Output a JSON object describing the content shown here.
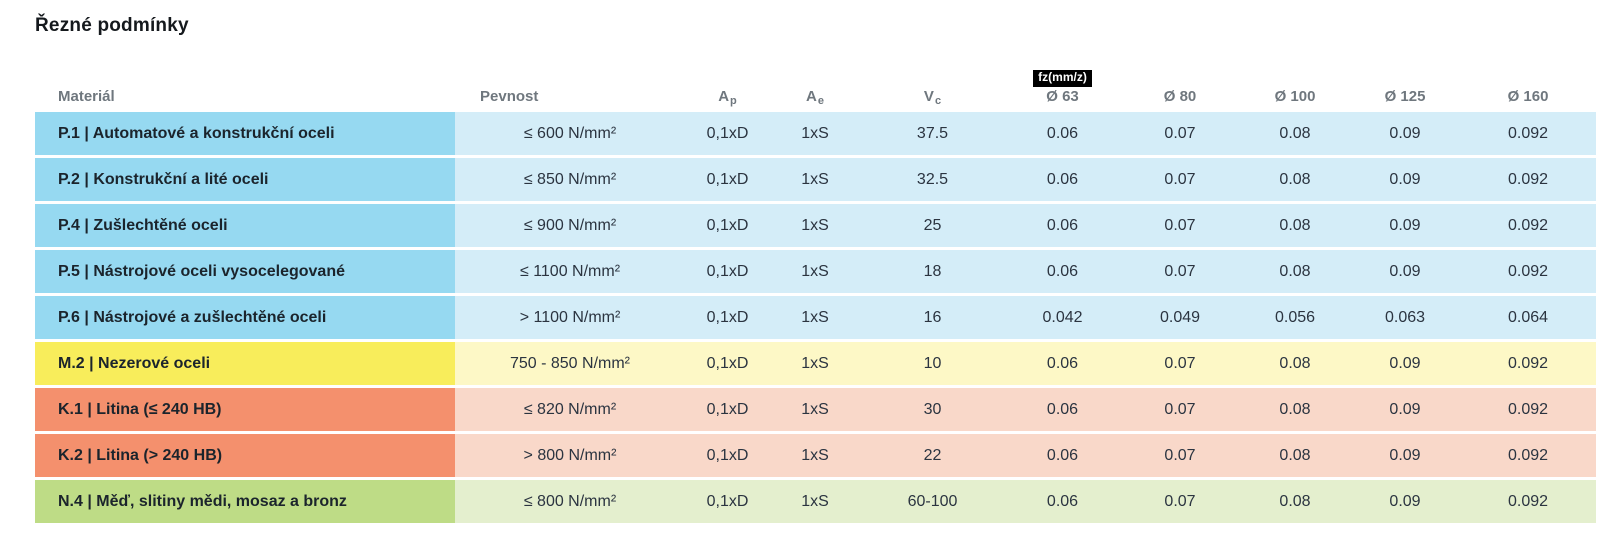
{
  "title": "Řezné podmínky",
  "table": {
    "headers": {
      "material": "Materiál",
      "pevnost": "Pevnost",
      "ap_main": "A",
      "ap_sub": "p",
      "ae_main": "A",
      "ae_sub": "e",
      "vc_main": "V",
      "vc_sub": "c",
      "fz_badge": "fz(mm/z)",
      "diameters": [
        "Ø 63",
        "Ø 80",
        "Ø 100",
        "Ø 125",
        "Ø 160"
      ]
    },
    "colors": {
      "blue": {
        "strong": "#96d9f1",
        "light": "#d4edf8"
      },
      "yellow": {
        "strong": "#f8ed5b",
        "light": "#fdf8c6"
      },
      "salmon": {
        "strong": "#f4906d",
        "light": "#f9d8c9"
      },
      "green": {
        "strong": "#bedc86",
        "light": "#e4efce"
      }
    },
    "rows": [
      {
        "group": "blue",
        "material": "P.1 | Automatové a konstrukční oceli",
        "pevnost": "≤ 600 N/mm²",
        "ap": "0,1xD",
        "ae": "1xS",
        "vc": "37.5",
        "fz": [
          "0.06",
          "0.07",
          "0.08",
          "0.09",
          "0.092"
        ]
      },
      {
        "group": "blue",
        "material": "P.2 | Konstrukční a lité oceli",
        "pevnost": "≤ 850 N/mm²",
        "ap": "0,1xD",
        "ae": "1xS",
        "vc": "32.5",
        "fz": [
          "0.06",
          "0.07",
          "0.08",
          "0.09",
          "0.092"
        ]
      },
      {
        "group": "blue",
        "material": "P.4 | Zušlechtěné oceli",
        "pevnost": "≤ 900 N/mm²",
        "ap": "0,1xD",
        "ae": "1xS",
        "vc": "25",
        "fz": [
          "0.06",
          "0.07",
          "0.08",
          "0.09",
          "0.092"
        ]
      },
      {
        "group": "blue",
        "material": "P.5 | Nástrojové oceli vysocelegované",
        "pevnost": "≤ 1100 N/mm²",
        "ap": "0,1xD",
        "ae": "1xS",
        "vc": "18",
        "fz": [
          "0.06",
          "0.07",
          "0.08",
          "0.09",
          "0.092"
        ]
      },
      {
        "group": "blue",
        "material": "P.6 | Nástrojové a zušlechtěné oceli",
        "pevnost": "> 1100 N/mm²",
        "ap": "0,1xD",
        "ae": "1xS",
        "vc": "16",
        "fz": [
          "0.042",
          "0.049",
          "0.056",
          "0.063",
          "0.064"
        ]
      },
      {
        "group": "yellow",
        "material": "M.2 | Nezerové oceli",
        "pevnost": "750 - 850 N/mm²",
        "ap": "0,1xD",
        "ae": "1xS",
        "vc": "10",
        "fz": [
          "0.06",
          "0.07",
          "0.08",
          "0.09",
          "0.092"
        ]
      },
      {
        "group": "salmon",
        "material": "K.1 | Litina (≤ 240 HB)",
        "pevnost": "≤ 820 N/mm²",
        "ap": "0,1xD",
        "ae": "1xS",
        "vc": "30",
        "fz": [
          "0.06",
          "0.07",
          "0.08",
          "0.09",
          "0.092"
        ]
      },
      {
        "group": "salmon",
        "material": "K.2 | Litina (> 240 HB)",
        "pevnost": "> 800 N/mm²",
        "ap": "0,1xD",
        "ae": "1xS",
        "vc": "22",
        "fz": [
          "0.06",
          "0.07",
          "0.08",
          "0.09",
          "0.092"
        ]
      },
      {
        "group": "green",
        "material": "N.4 | Měď, slitiny mědi, mosaz a bronz",
        "pevnost": "≤ 800 N/mm²",
        "ap": "0,1xD",
        "ae": "1xS",
        "vc": "60-100",
        "fz": [
          "0.06",
          "0.07",
          "0.08",
          "0.09",
          "0.092"
        ]
      }
    ]
  }
}
